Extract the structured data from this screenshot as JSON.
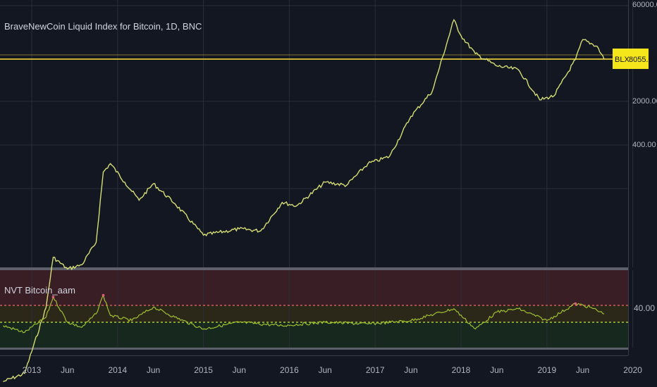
{
  "main_chart": {
    "title": "BraveNewCoin Liquid Index for Bitcoin, 1D, BNC",
    "price_label": {
      "symbol": "BLX",
      "value": "8055.05"
    },
    "y_scale": "log",
    "y_ticks": [
      "60000.00",
      "2000.00",
      "400.00"
    ],
    "colors": {
      "line": "#c8d66a",
      "price_line": "#c9b032",
      "label_bg": "#f5e61b"
    }
  },
  "indicator": {
    "title": "NVT Bitcoin_aam",
    "y_tick": "40.00",
    "upper_line_color": "#d05a5a",
    "lower_line_color": "#a7c936",
    "band_colors": {
      "upper": "#3a1e25",
      "middle": "#2b281a",
      "lower": "#17281f"
    }
  },
  "x_axis": {
    "labels": [
      "2013",
      "Jun",
      "2014",
      "Jun",
      "2015",
      "Jun",
      "2016",
      "Jun",
      "2017",
      "Jun",
      "2018",
      "Jun",
      "2019",
      "Jun",
      "2020"
    ]
  },
  "chart_data": [
    {
      "type": "line",
      "title": "BraveNewCoin Liquid Index for Bitcoin, 1D, BNC",
      "y_scale": "log",
      "series": [
        {
          "name": "BLX",
          "x": [
            "2012-09",
            "2012-12",
            "2013-03",
            "2013-04",
            "2013-06",
            "2013-08",
            "2013-10",
            "2013-11",
            "2013-12",
            "2014-02",
            "2014-04",
            "2014-06",
            "2014-09",
            "2015-01",
            "2015-06",
            "2015-09",
            "2015-12",
            "2016-02",
            "2016-06",
            "2016-09",
            "2016-12",
            "2017-03",
            "2017-06",
            "2017-09",
            "2017-12",
            "2018-01",
            "2018-03",
            "2018-06",
            "2018-09",
            "2018-12",
            "2019-02",
            "2019-05",
            "2019-06",
            "2019-08",
            "2019-09"
          ],
          "values": [
            11,
            13,
            50,
            140,
            110,
            120,
            190,
            800,
            950,
            650,
            450,
            630,
            420,
            220,
            250,
            240,
            430,
            400,
            650,
            610,
            950,
            1100,
            2500,
            4200,
            18000,
            13000,
            9000,
            7000,
            6500,
            3500,
            3800,
            8000,
            12000,
            10500,
            8055
          ]
        }
      ]
    },
    {
      "type": "line",
      "title": "NVT Bitcoin_aam",
      "series": [
        {
          "name": "NVT",
          "x": [
            "2012-09",
            "2012-12",
            "2013-03",
            "2013-04",
            "2013-06",
            "2013-08",
            "2013-10",
            "2013-11",
            "2013-12",
            "2014-03",
            "2014-06",
            "2014-09",
            "2015-01",
            "2015-06",
            "2015-12",
            "2016-06",
            "2016-12",
            "2017-06",
            "2017-12",
            "2018-03",
            "2018-06",
            "2018-09",
            "2019-01",
            "2019-05",
            "2019-07",
            "2019-09"
          ],
          "values": [
            28,
            24,
            33,
            45,
            30,
            27,
            35,
            46,
            34,
            31,
            39,
            33,
            26,
            30,
            28,
            30,
            29,
            31,
            38,
            26,
            36,
            38,
            31,
            41,
            39,
            35
          ]
        }
      ]
    }
  ]
}
